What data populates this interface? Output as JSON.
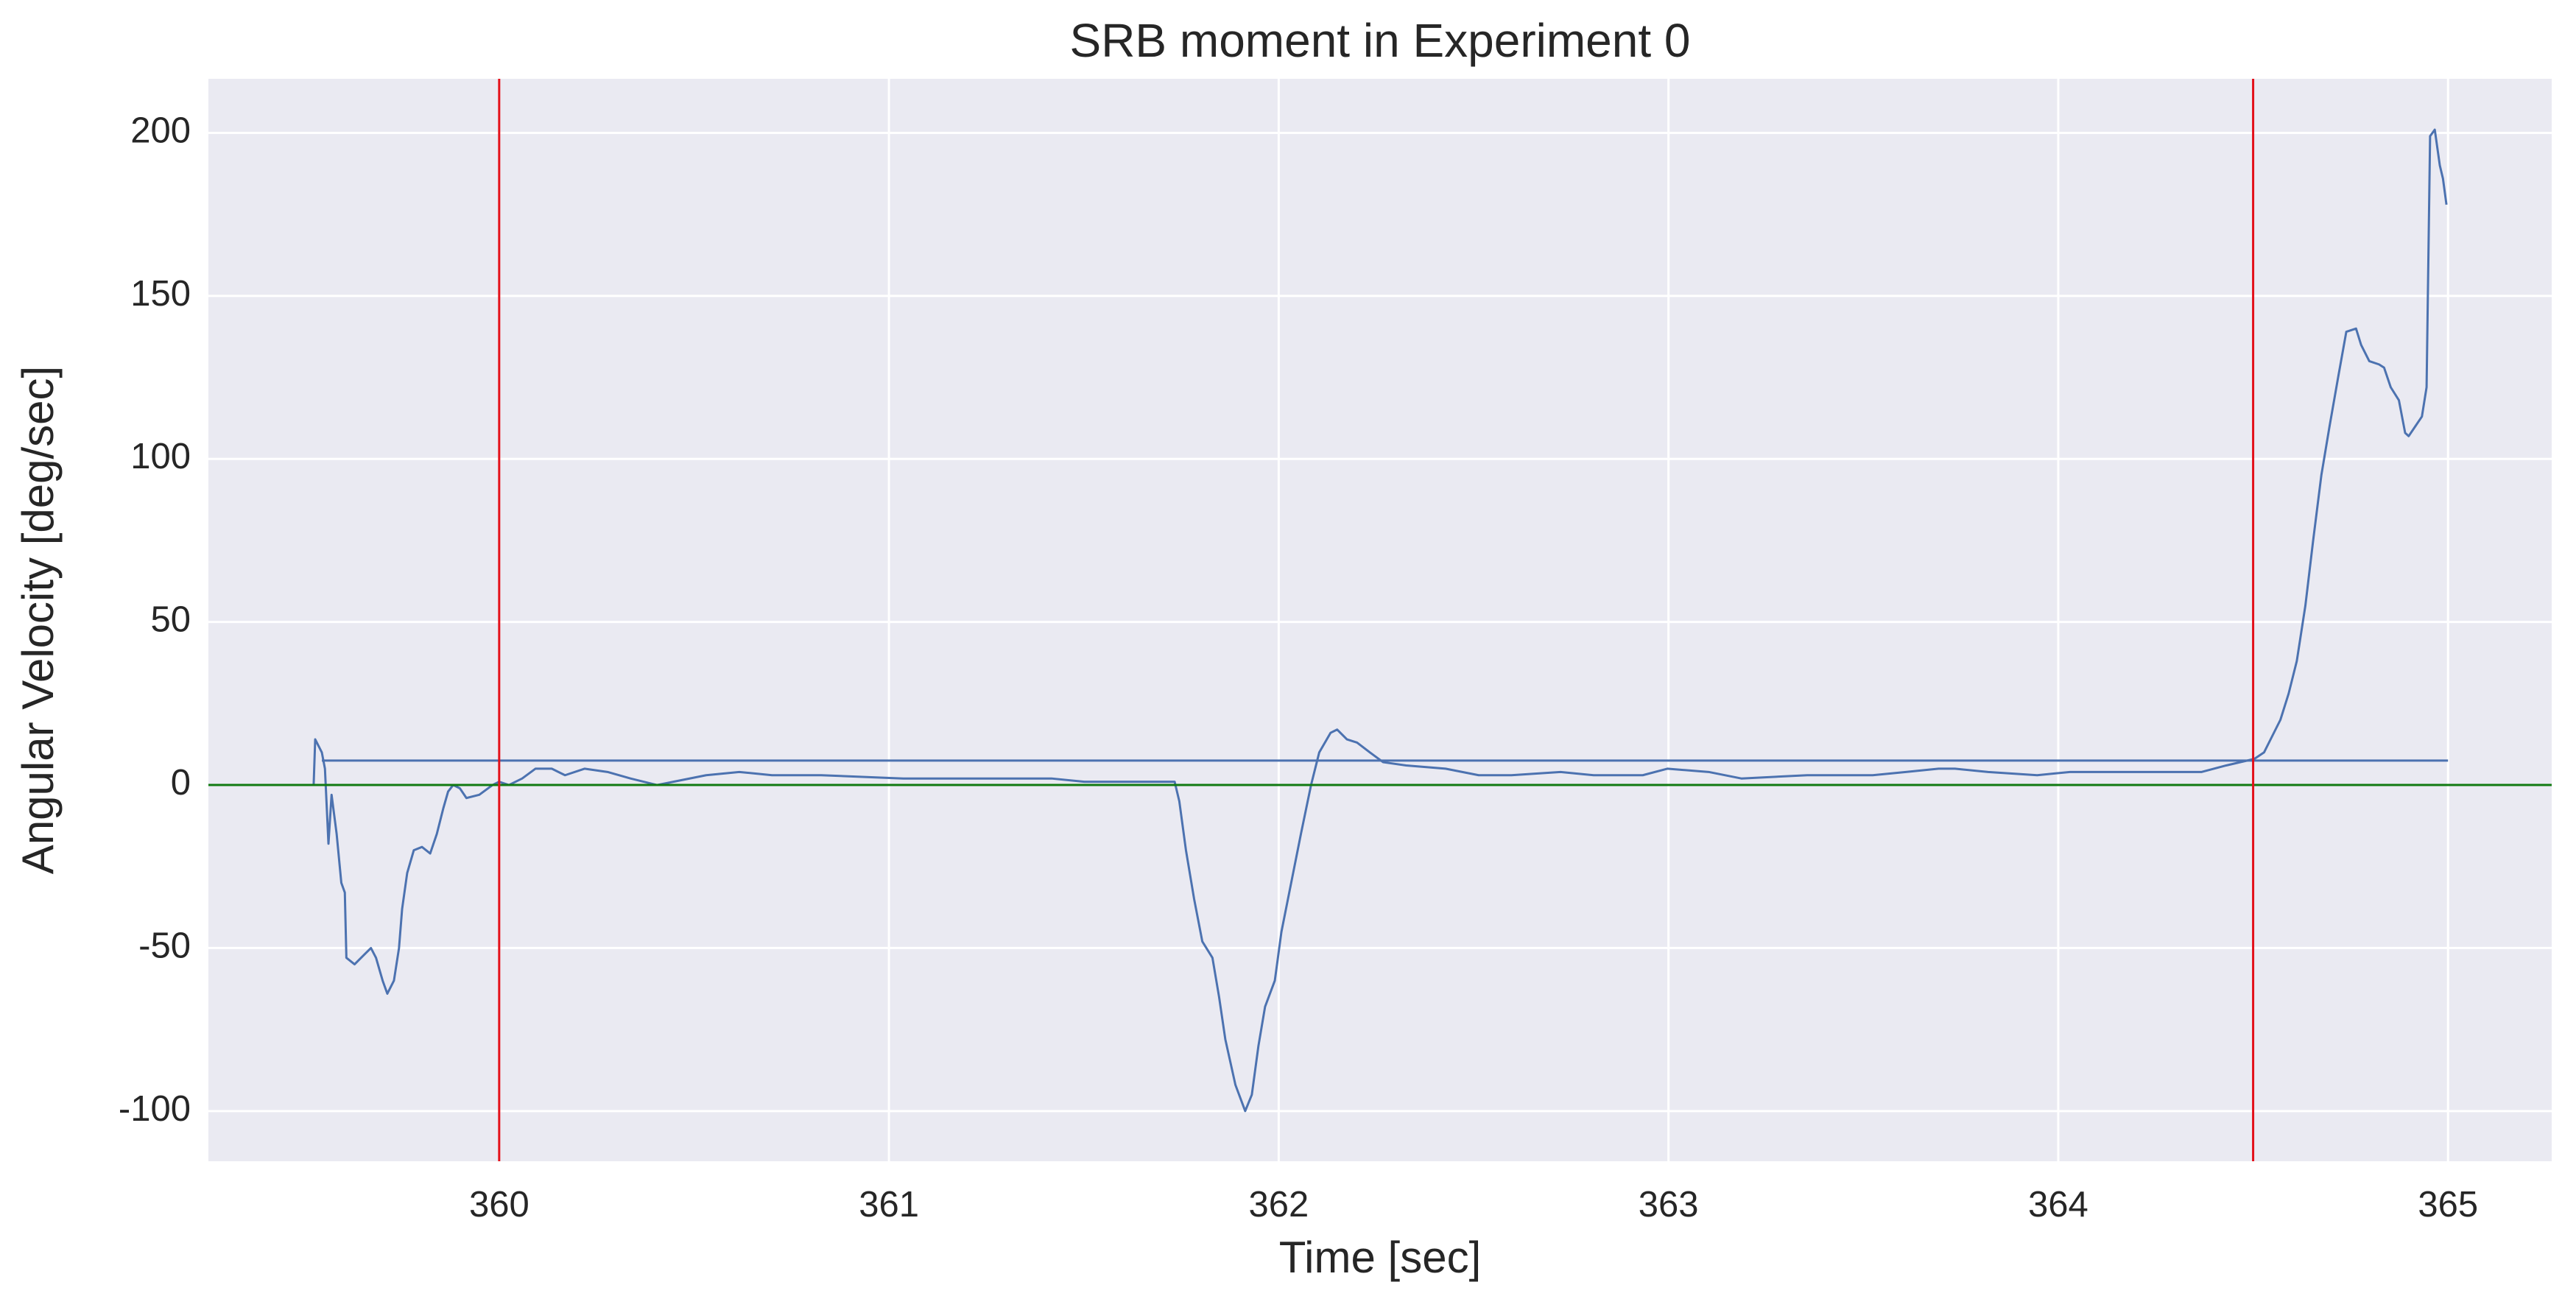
{
  "chart_data": {
    "type": "line",
    "title": "SRB moment in Experiment 0",
    "x_label": "Time [sec]",
    "y_label": "Angular Velocity [deg/sec]",
    "xlim": [
      359.254,
      365.266
    ],
    "ylim": [
      -115.4,
      216.6
    ],
    "xticks": [
      360,
      361,
      362,
      363,
      364,
      365
    ],
    "yticks": [
      -100,
      -50,
      0,
      50,
      100,
      150,
      200
    ],
    "grid": true,
    "vlines": [
      360,
      364.5
    ],
    "vline_color": "#e3101a",
    "hlines": [
      0
    ],
    "hline_color": "#117a11",
    "series": [
      {
        "color": "#4c72b0",
        "x": [
          359.524,
          359.528,
          359.545,
          359.553,
          359.562,
          359.57,
          359.583,
          359.595,
          359.604,
          359.608,
          359.629,
          359.654,
          359.671,
          359.684,
          359.701,
          359.713,
          359.73,
          359.743,
          359.751,
          359.764,
          359.781,
          359.802,
          359.823,
          359.84,
          359.857,
          359.869,
          359.882,
          359.899,
          359.916,
          359.949,
          359.983,
          360.0,
          360.025,
          360.059,
          360.093,
          360.135,
          360.169,
          360.219,
          360.278,
          360.337,
          360.405,
          360.447,
          360.531,
          360.616,
          360.7,
          360.826,
          361.037,
          361.248,
          361.417,
          361.501,
          361.669,
          361.733,
          361.745,
          361.762,
          361.783,
          361.804,
          361.83,
          361.847,
          361.863,
          361.889,
          361.914,
          361.931,
          361.948,
          361.965,
          361.99,
          362.007,
          362.032,
          362.057,
          362.083,
          362.104,
          362.133,
          362.15,
          362.175,
          362.201,
          362.234,
          362.268,
          362.327,
          362.428,
          362.513,
          362.597,
          362.723,
          362.808,
          362.934,
          362.997,
          363.103,
          363.187,
          363.356,
          363.524,
          363.609,
          363.693,
          363.735,
          363.82,
          363.946,
          364.03,
          364.199,
          364.368,
          364.431,
          364.503,
          364.528,
          364.549,
          364.57,
          364.591,
          364.612,
          364.634,
          364.654,
          364.675,
          364.696,
          364.718,
          364.739,
          364.764,
          364.777,
          364.798,
          364.823,
          364.836,
          364.853,
          364.874,
          364.89,
          364.899,
          364.916,
          364.933,
          364.945,
          364.954,
          364.966,
          364.979,
          364.987,
          364.996
        ],
        "values": [
          0,
          14,
          10,
          5,
          -18,
          -3,
          -15,
          -30,
          -33,
          -53,
          -55,
          -52,
          -50,
          -53,
          -60,
          -64,
          -60,
          -50,
          -38,
          -27,
          -20,
          -19,
          -21,
          -15,
          -7,
          -2,
          0,
          -1,
          -4,
          -3,
          0,
          1,
          0,
          2,
          5,
          5,
          3,
          5,
          4,
          2,
          0,
          1,
          3,
          4,
          3,
          3,
          2,
          2,
          2,
          1,
          1,
          1,
          -5,
          -20,
          -35,
          -48,
          -53,
          -65,
          -78,
          -92,
          -100,
          -95,
          -80,
          -68,
          -60,
          -45,
          -30,
          -15,
          0,
          10,
          16,
          17,
          14,
          13,
          10,
          7,
          6,
          5,
          3,
          3,
          4,
          3,
          3,
          5,
          4,
          2,
          3,
          3,
          4,
          5,
          5,
          4,
          3,
          4,
          4,
          4,
          6,
          8,
          10,
          15,
          20,
          28,
          38,
          55,
          75,
          95,
          110,
          125,
          139,
          140,
          135,
          130,
          129,
          128,
          122,
          118,
          108,
          107,
          110,
          113,
          122,
          199,
          201,
          190,
          186,
          178
        ]
      },
      {
        "color": "#4c72b0",
        "x": [
          359.545,
          365
        ],
        "values": [
          7.5,
          7.5
        ]
      }
    ]
  }
}
